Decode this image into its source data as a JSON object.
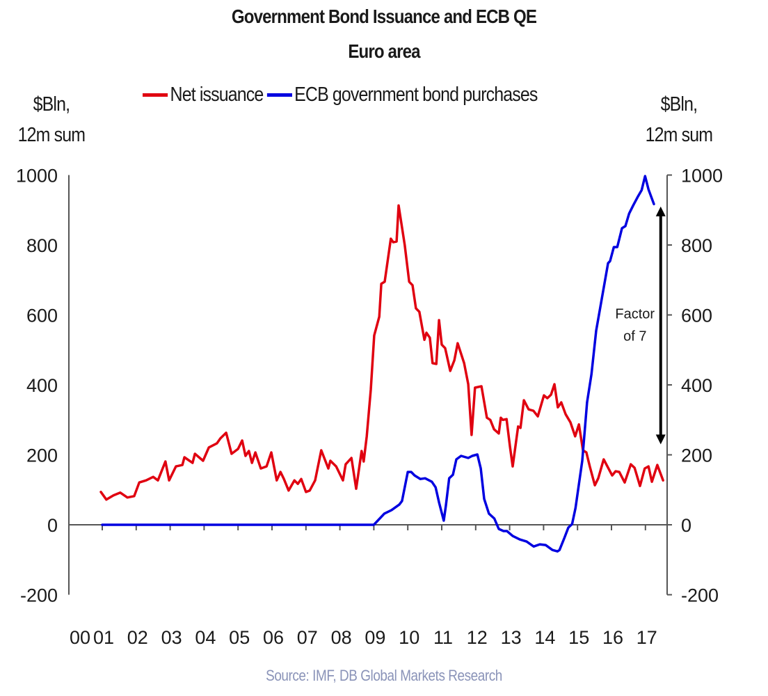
{
  "chart_data": {
    "type": "line",
    "title": "Government Bond Issuance and ECB QE",
    "subtitle": "Euro area",
    "ylabel_left": "$Bln, 12m sum",
    "ylabel_right": "$Bln, 12m sum",
    "ylabel_left_lines": [
      "$Bln,",
      "12m sum"
    ],
    "ylabel_right_lines": [
      "$Bln,",
      "12m sum"
    ],
    "xlabel": "",
    "x_tick_labels": [
      "00",
      "01",
      "02",
      "03",
      "04",
      "05",
      "06",
      "07",
      "08",
      "09",
      "10",
      "11",
      "12",
      "13",
      "14",
      "15",
      "16",
      "17"
    ],
    "x_tick_years": [
      2000,
      2001,
      2002,
      2003,
      2004,
      2005,
      2006,
      2007,
      2008,
      2009,
      2010,
      2011,
      2012,
      2013,
      2014,
      2015,
      2016,
      2017
    ],
    "xlim": [
      2000,
      2017.6
    ],
    "ylim_left": [
      -200,
      1000
    ],
    "ylim_right": [
      -200,
      1000
    ],
    "yticks": [
      -200,
      0,
      200,
      400,
      600,
      800,
      1000
    ],
    "grid": false,
    "legend_position": "top-center",
    "series": [
      {
        "name": "Net issuance",
        "color": "#e00010",
        "axis": "left",
        "points": [
          [
            2000.96,
            94
          ],
          [
            2001.12,
            72
          ],
          [
            2001.33,
            84
          ],
          [
            2001.53,
            92
          ],
          [
            2001.74,
            78
          ],
          [
            2001.94,
            82
          ],
          [
            2002.09,
            121
          ],
          [
            2002.29,
            127
          ],
          [
            2002.5,
            137
          ],
          [
            2002.64,
            127
          ],
          [
            2002.86,
            181
          ],
          [
            2002.97,
            127
          ],
          [
            2003.17,
            167
          ],
          [
            2003.36,
            171
          ],
          [
            2003.42,
            193
          ],
          [
            2003.66,
            177
          ],
          [
            2003.73,
            203
          ],
          [
            2003.97,
            183
          ],
          [
            2004.14,
            221
          ],
          [
            2004.38,
            233
          ],
          [
            2004.48,
            247
          ],
          [
            2004.65,
            263
          ],
          [
            2004.81,
            203
          ],
          [
            2005.0,
            217
          ],
          [
            2005.12,
            241
          ],
          [
            2005.22,
            197
          ],
          [
            2005.32,
            211
          ],
          [
            2005.41,
            177
          ],
          [
            2005.51,
            207
          ],
          [
            2005.67,
            161
          ],
          [
            2005.84,
            167
          ],
          [
            2005.98,
            207
          ],
          [
            2006.14,
            127
          ],
          [
            2006.25,
            151
          ],
          [
            2006.35,
            131
          ],
          [
            2006.49,
            98
          ],
          [
            2006.66,
            127
          ],
          [
            2006.76,
            117
          ],
          [
            2006.86,
            131
          ],
          [
            2007.0,
            94
          ],
          [
            2007.11,
            98
          ],
          [
            2007.27,
            127
          ],
          [
            2007.45,
            213
          ],
          [
            2007.66,
            161
          ],
          [
            2007.72,
            183
          ],
          [
            2007.89,
            167
          ],
          [
            2008.09,
            127
          ],
          [
            2008.17,
            173
          ],
          [
            2008.34,
            191
          ],
          [
            2008.48,
            103
          ],
          [
            2008.64,
            211
          ],
          [
            2008.7,
            181
          ],
          [
            2008.79,
            253
          ],
          [
            2008.91,
            386
          ],
          [
            2009.01,
            541
          ],
          [
            2009.16,
            595
          ],
          [
            2009.22,
            689
          ],
          [
            2009.32,
            695
          ],
          [
            2009.5,
            818
          ],
          [
            2009.57,
            808
          ],
          [
            2009.67,
            810
          ],
          [
            2009.73,
            913
          ],
          [
            2009.91,
            800
          ],
          [
            2010.04,
            695
          ],
          [
            2010.14,
            685
          ],
          [
            2010.24,
            619
          ],
          [
            2010.34,
            609
          ],
          [
            2010.49,
            529
          ],
          [
            2010.55,
            549
          ],
          [
            2010.65,
            535
          ],
          [
            2010.73,
            462
          ],
          [
            2010.84,
            460
          ],
          [
            2010.92,
            585
          ],
          [
            2011.0,
            515
          ],
          [
            2011.1,
            505
          ],
          [
            2011.25,
            440
          ],
          [
            2011.37,
            470
          ],
          [
            2011.47,
            519
          ],
          [
            2011.66,
            462
          ],
          [
            2011.78,
            402
          ],
          [
            2011.88,
            257
          ],
          [
            2011.98,
            392
          ],
          [
            2012.17,
            396
          ],
          [
            2012.33,
            306
          ],
          [
            2012.43,
            300
          ],
          [
            2012.54,
            273
          ],
          [
            2012.68,
            261
          ],
          [
            2012.74,
            306
          ],
          [
            2012.8,
            300
          ],
          [
            2012.91,
            302
          ],
          [
            2013.01,
            223
          ],
          [
            2013.09,
            167
          ],
          [
            2013.25,
            281
          ],
          [
            2013.32,
            277
          ],
          [
            2013.42,
            356
          ],
          [
            2013.56,
            330
          ],
          [
            2013.7,
            326
          ],
          [
            2013.83,
            310
          ],
          [
            2014.01,
            370
          ],
          [
            2014.11,
            362
          ],
          [
            2014.22,
            372
          ],
          [
            2014.32,
            402
          ],
          [
            2014.42,
            336
          ],
          [
            2014.52,
            350
          ],
          [
            2014.65,
            316
          ],
          [
            2014.79,
            293
          ],
          [
            2014.93,
            253
          ],
          [
            2015.04,
            287
          ],
          [
            2015.16,
            213
          ],
          [
            2015.26,
            207
          ],
          [
            2015.36,
            167
          ],
          [
            2015.51,
            113
          ],
          [
            2015.61,
            133
          ],
          [
            2015.77,
            187
          ],
          [
            2015.88,
            167
          ],
          [
            2016.02,
            141
          ],
          [
            2016.12,
            153
          ],
          [
            2016.23,
            151
          ],
          [
            2016.39,
            121
          ],
          [
            2016.57,
            173
          ],
          [
            2016.68,
            163
          ],
          [
            2016.84,
            111
          ],
          [
            2016.98,
            161
          ],
          [
            2017.09,
            167
          ],
          [
            2017.19,
            123
          ],
          [
            2017.35,
            171
          ],
          [
            2017.52,
            127
          ]
        ]
      },
      {
        "name": "ECB government bond purchases",
        "color": "#0000e0",
        "axis": "right",
        "points": [
          [
            2001.0,
            0
          ],
          [
            2009.0,
            0
          ],
          [
            2009.31,
            32
          ],
          [
            2009.52,
            42
          ],
          [
            2009.75,
            58
          ],
          [
            2009.83,
            68
          ],
          [
            2010.0,
            151
          ],
          [
            2010.1,
            151
          ],
          [
            2010.2,
            141
          ],
          [
            2010.37,
            131
          ],
          [
            2010.51,
            133
          ],
          [
            2010.71,
            123
          ],
          [
            2010.82,
            107
          ],
          [
            2010.92,
            64
          ],
          [
            2011.06,
            12
          ],
          [
            2011.12,
            54
          ],
          [
            2011.22,
            133
          ],
          [
            2011.33,
            143
          ],
          [
            2011.43,
            187
          ],
          [
            2011.57,
            197
          ],
          [
            2011.78,
            191
          ],
          [
            2011.9,
            197
          ],
          [
            2012.05,
            201
          ],
          [
            2012.15,
            161
          ],
          [
            2012.25,
            74
          ],
          [
            2012.39,
            32
          ],
          [
            2012.55,
            18
          ],
          [
            2012.68,
            -12
          ],
          [
            2012.82,
            -18
          ],
          [
            2012.92,
            -18
          ],
          [
            2013.09,
            -32
          ],
          [
            2013.3,
            -42
          ],
          [
            2013.5,
            -48
          ],
          [
            2013.71,
            -62
          ],
          [
            2013.89,
            -56
          ],
          [
            2014.06,
            -58
          ],
          [
            2014.26,
            -72
          ],
          [
            2014.41,
            -76
          ],
          [
            2014.47,
            -72
          ],
          [
            2014.61,
            -38
          ],
          [
            2014.73,
            -8
          ],
          [
            2014.84,
            2
          ],
          [
            2014.94,
            48
          ],
          [
            2015.14,
            183
          ],
          [
            2015.28,
            350
          ],
          [
            2015.41,
            430
          ],
          [
            2015.55,
            555
          ],
          [
            2015.72,
            649
          ],
          [
            2015.9,
            748
          ],
          [
            2015.96,
            754
          ],
          [
            2016.07,
            794
          ],
          [
            2016.17,
            794
          ],
          [
            2016.31,
            848
          ],
          [
            2016.41,
            854
          ],
          [
            2016.52,
            890
          ],
          [
            2016.64,
            913
          ],
          [
            2016.78,
            939
          ],
          [
            2016.89,
            957
          ],
          [
            2016.99,
            997
          ],
          [
            2017.09,
            959
          ],
          [
            2017.25,
            917
          ]
        ]
      }
    ],
    "annotations": [
      {
        "type": "double-arrow",
        "x": 2017.45,
        "from": 230,
        "to": 910,
        "label_lines": [
          "Factor",
          "of 7"
        ]
      }
    ]
  },
  "source": "Source: IMF, DB Global Markets Research"
}
